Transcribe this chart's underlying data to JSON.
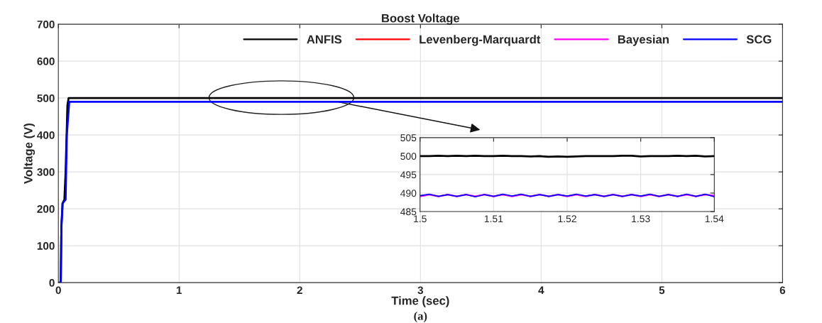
{
  "chart_data": [
    {
      "type": "line",
      "title": "Boost Voltage",
      "xlabel": "Time (sec)",
      "ylabel": "Voltage (V)",
      "annotations": [
        "(a)"
      ],
      "xlim": [
        0,
        6
      ],
      "ylim": [
        0,
        700
      ],
      "xticks": [
        0,
        1,
        2,
        3,
        4,
        5,
        6
      ],
      "yticks": [
        0,
        100,
        200,
        300,
        400,
        500,
        600,
        700
      ],
      "grid": true,
      "legend": "top right",
      "series": [
        {
          "name": "ANFIS",
          "color": "#000000",
          "x": [
            0,
            0.02,
            0.025,
            0.035,
            0.05,
            0.06,
            0.075,
            0.085,
            6
          ],
          "values": [
            0,
            0,
            150,
            215,
            225,
            300,
            480,
            500,
            500
          ]
        },
        {
          "name": "Levenberg-Marquardt",
          "color": "#ff0000"
        },
        {
          "name": "Bayesian",
          "color": "#ff00ff"
        },
        {
          "name": "SCG",
          "color": "#0000ff",
          "x": [
            0,
            0.02,
            0.025,
            0.035,
            0.06,
            0.07,
            0.09,
            6
          ],
          "values": [
            0,
            0,
            150,
            215,
            225,
            400,
            490,
            490
          ]
        }
      ]
    },
    {
      "type": "line",
      "xlim": [
        1.5,
        1.54
      ],
      "ylim": [
        485,
        505
      ],
      "xticks": [
        1.5,
        1.51,
        1.52,
        1.53,
        1.54
      ],
      "yticks": [
        485,
        490,
        495,
        500,
        505
      ],
      "grid": true,
      "series": [
        {
          "color": "#000000",
          "x": [
            1.5,
            1.50125,
            1.5025,
            1.50375,
            1.505,
            1.50625,
            1.5075,
            1.50875,
            1.51,
            1.51125,
            1.5125,
            1.51375,
            1.515,
            1.51625,
            1.5175,
            1.51875,
            1.52,
            1.52125,
            1.5225,
            1.52375,
            1.525,
            1.52625,
            1.5275,
            1.52875,
            1.53,
            1.53125,
            1.5325,
            1.53375,
            1.535,
            1.53625,
            1.5375,
            1.53875,
            1.54
          ],
          "values": [
            500,
            500,
            500.1,
            500,
            500.1,
            500,
            500.1,
            500,
            500,
            500.1,
            500,
            500,
            499.9,
            500,
            499.8,
            499.9,
            499.8,
            499.9,
            500,
            500,
            500,
            500,
            500.1,
            500.1,
            499.9,
            500,
            500,
            500,
            500.1,
            500,
            500.1,
            499.9,
            500
          ]
        },
        {
          "color": "#ff00ff",
          "x": [
            1.5,
            1.50125,
            1.5025,
            1.50375,
            1.505,
            1.50625,
            1.5075,
            1.50875,
            1.51,
            1.51125,
            1.5125,
            1.51375,
            1.515,
            1.51625,
            1.5175,
            1.51875,
            1.52,
            1.52125,
            1.5225,
            1.52375,
            1.525,
            1.52625,
            1.5275,
            1.52875,
            1.53,
            1.53125,
            1.5325,
            1.53375,
            1.535,
            1.53625,
            1.5375,
            1.53875,
            1.54
          ],
          "values": [
            489.1,
            489.6,
            489.1,
            489.6,
            489.1,
            489.6,
            489.1,
            489.6,
            489.1,
            489.6,
            489.1,
            489.6,
            489.1,
            489.6,
            489.1,
            489.6,
            489.1,
            489.6,
            489.1,
            489.6,
            489.1,
            489.6,
            489.1,
            489.6,
            489.1,
            489.6,
            489.1,
            489.6,
            489.1,
            489.6,
            489.1,
            489.6,
            489.3
          ]
        },
        {
          "color": "#0000ff",
          "x": [
            1.5,
            1.50125,
            1.5025,
            1.50375,
            1.505,
            1.50625,
            1.5075,
            1.50875,
            1.51,
            1.51125,
            1.5125,
            1.51375,
            1.515,
            1.51625,
            1.5175,
            1.51875,
            1.52,
            1.52125,
            1.5225,
            1.52375,
            1.525,
            1.52625,
            1.5275,
            1.52875,
            1.53,
            1.53125,
            1.5325,
            1.53375,
            1.535,
            1.53625,
            1.5375,
            1.53875,
            1.54
          ],
          "values": [
            489.3,
            489.7,
            489.1,
            489.6,
            489.1,
            489.6,
            489.0,
            489.6,
            489.1,
            489.7,
            489.2,
            489.7,
            489.1,
            489.6,
            489.1,
            489.6,
            489.2,
            489.7,
            489.2,
            489.6,
            489.1,
            489.6,
            489.1,
            489.6,
            489.2,
            489.7,
            489.1,
            489.6,
            489.1,
            489.7,
            489.1,
            489.7,
            489.0
          ]
        }
      ]
    }
  ]
}
